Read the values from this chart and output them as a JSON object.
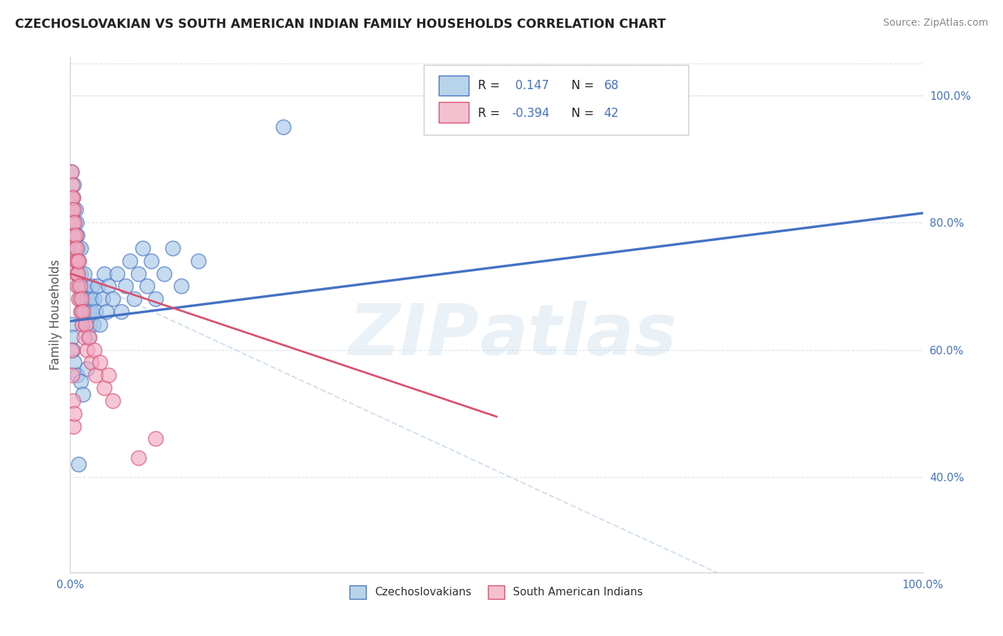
{
  "title": "CZECHOSLOVAKIAN VS SOUTH AMERICAN INDIAN FAMILY HOUSEHOLDS CORRELATION CHART",
  "source": "Source: ZipAtlas.com",
  "ylabel": "Family Households",
  "R_blue": 0.147,
  "N_blue": 68,
  "R_pink": -0.394,
  "N_pink": 42,
  "blue_color": "#a8c8e8",
  "pink_color": "#f4a8c0",
  "blue_line_color": "#4472c4",
  "pink_line_color": "#d94f6e",
  "diag_line_color": "#c8d8e8",
  "legend_blue_fill": "#b8d4ea",
  "legend_pink_fill": "#f4c0d0",
  "background_color": "#ffffff",
  "grid_color": "#d8e4ee",
  "blue_line": [
    0.0,
    0.645,
    1.0,
    0.815
  ],
  "pink_line": [
    0.0,
    0.72,
    0.5,
    0.495
  ],
  "diag_line": [
    0.0,
    0.72,
    1.0,
    0.1
  ],
  "blue_scatter": [
    [
      0.001,
      0.88
    ],
    [
      0.002,
      0.84
    ],
    [
      0.003,
      0.84
    ],
    [
      0.004,
      0.82
    ],
    [
      0.004,
      0.86
    ],
    [
      0.005,
      0.8
    ],
    [
      0.006,
      0.78
    ],
    [
      0.006,
      0.82
    ],
    [
      0.007,
      0.76
    ],
    [
      0.007,
      0.8
    ],
    [
      0.008,
      0.74
    ],
    [
      0.008,
      0.78
    ],
    [
      0.009,
      0.72
    ],
    [
      0.009,
      0.76
    ],
    [
      0.01,
      0.7
    ],
    [
      0.01,
      0.74
    ],
    [
      0.011,
      0.68
    ],
    [
      0.012,
      0.72
    ],
    [
      0.012,
      0.76
    ],
    [
      0.013,
      0.66
    ],
    [
      0.014,
      0.7
    ],
    [
      0.015,
      0.64
    ],
    [
      0.015,
      0.68
    ],
    [
      0.016,
      0.72
    ],
    [
      0.017,
      0.66
    ],
    [
      0.018,
      0.7
    ],
    [
      0.018,
      0.64
    ],
    [
      0.02,
      0.68
    ],
    [
      0.021,
      0.62
    ],
    [
      0.022,
      0.66
    ],
    [
      0.023,
      0.64
    ],
    [
      0.024,
      0.68
    ],
    [
      0.025,
      0.66
    ],
    [
      0.026,
      0.7
    ],
    [
      0.027,
      0.64
    ],
    [
      0.028,
      0.68
    ],
    [
      0.03,
      0.66
    ],
    [
      0.032,
      0.7
    ],
    [
      0.035,
      0.64
    ],
    [
      0.038,
      0.68
    ],
    [
      0.04,
      0.72
    ],
    [
      0.042,
      0.66
    ],
    [
      0.045,
      0.7
    ],
    [
      0.05,
      0.68
    ],
    [
      0.055,
      0.72
    ],
    [
      0.06,
      0.66
    ],
    [
      0.065,
      0.7
    ],
    [
      0.07,
      0.74
    ],
    [
      0.075,
      0.68
    ],
    [
      0.08,
      0.72
    ],
    [
      0.085,
      0.76
    ],
    [
      0.09,
      0.7
    ],
    [
      0.095,
      0.74
    ],
    [
      0.1,
      0.68
    ],
    [
      0.11,
      0.72
    ],
    [
      0.12,
      0.76
    ],
    [
      0.13,
      0.7
    ],
    [
      0.15,
      0.74
    ],
    [
      0.001,
      0.64
    ],
    [
      0.002,
      0.62
    ],
    [
      0.003,
      0.6
    ],
    [
      0.005,
      0.58
    ],
    [
      0.008,
      0.56
    ],
    [
      0.01,
      0.42
    ],
    [
      0.012,
      0.55
    ],
    [
      0.015,
      0.53
    ],
    [
      0.02,
      0.57
    ],
    [
      0.25,
      0.95
    ]
  ],
  "pink_scatter": [
    [
      0.001,
      0.88
    ],
    [
      0.001,
      0.84
    ],
    [
      0.002,
      0.86
    ],
    [
      0.002,
      0.82
    ],
    [
      0.003,
      0.84
    ],
    [
      0.003,
      0.8
    ],
    [
      0.004,
      0.82
    ],
    [
      0.004,
      0.78
    ],
    [
      0.005,
      0.8
    ],
    [
      0.005,
      0.76
    ],
    [
      0.006,
      0.78
    ],
    [
      0.006,
      0.74
    ],
    [
      0.007,
      0.76
    ],
    [
      0.007,
      0.72
    ],
    [
      0.008,
      0.74
    ],
    [
      0.008,
      0.7
    ],
    [
      0.009,
      0.72
    ],
    [
      0.01,
      0.74
    ],
    [
      0.01,
      0.68
    ],
    [
      0.011,
      0.7
    ],
    [
      0.012,
      0.66
    ],
    [
      0.013,
      0.68
    ],
    [
      0.014,
      0.64
    ],
    [
      0.015,
      0.66
    ],
    [
      0.016,
      0.62
    ],
    [
      0.018,
      0.64
    ],
    [
      0.02,
      0.6
    ],
    [
      0.022,
      0.62
    ],
    [
      0.025,
      0.58
    ],
    [
      0.028,
      0.6
    ],
    [
      0.03,
      0.56
    ],
    [
      0.035,
      0.58
    ],
    [
      0.04,
      0.54
    ],
    [
      0.045,
      0.56
    ],
    [
      0.05,
      0.52
    ],
    [
      0.001,
      0.6
    ],
    [
      0.002,
      0.56
    ],
    [
      0.003,
      0.52
    ],
    [
      0.004,
      0.48
    ],
    [
      0.005,
      0.5
    ],
    [
      0.08,
      0.43
    ],
    [
      0.1,
      0.46
    ]
  ],
  "legend_labels": [
    "Czechoslovakians",
    "South American Indians"
  ],
  "ytick_positions": [
    0.4,
    0.6,
    0.8,
    1.0
  ],
  "ytick_labels": [
    "40.0%",
    "60.0%",
    "80.0%",
    "100.0%"
  ],
  "ylim": [
    0.25,
    1.06
  ],
  "xlim": [
    0.0,
    1.0
  ]
}
